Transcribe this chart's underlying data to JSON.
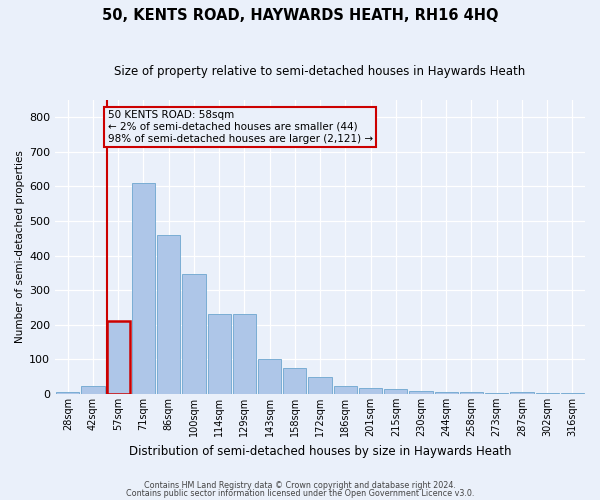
{
  "title": "50, KENTS ROAD, HAYWARDS HEATH, RH16 4HQ",
  "subtitle": "Size of property relative to semi-detached houses in Haywards Heath",
  "xlabel": "Distribution of semi-detached houses by size in Haywards Heath",
  "ylabel": "Number of semi-detached properties",
  "categories": [
    "28sqm",
    "42sqm",
    "57sqm",
    "71sqm",
    "86sqm",
    "100sqm",
    "114sqm",
    "129sqm",
    "143sqm",
    "158sqm",
    "172sqm",
    "186sqm",
    "201sqm",
    "215sqm",
    "230sqm",
    "244sqm",
    "258sqm",
    "273sqm",
    "287sqm",
    "302sqm",
    "316sqm"
  ],
  "values": [
    5,
    22,
    210,
    610,
    460,
    348,
    230,
    230,
    100,
    75,
    50,
    22,
    18,
    15,
    8,
    5,
    5,
    3,
    5,
    3,
    2
  ],
  "highlight_index": 2,
  "bar_color": "#aec6e8",
  "bar_edge_color": "#7aadd4",
  "highlight_bar_edge_color": "#cc0000",
  "annotation_box_text": "50 KENTS ROAD: 58sqm\n← 2% of semi-detached houses are smaller (44)\n98% of semi-detached houses are larger (2,121) →",
  "annotation_box_edge_color": "#cc0000",
  "ylim": [
    0,
    850
  ],
  "yticks": [
    0,
    100,
    200,
    300,
    400,
    500,
    600,
    700,
    800
  ],
  "footer1": "Contains HM Land Registry data © Crown copyright and database right 2024.",
  "footer2": "Contains public sector information licensed under the Open Government Licence v3.0.",
  "bg_color": "#eaf0fa",
  "grid_color": "#ffffff"
}
